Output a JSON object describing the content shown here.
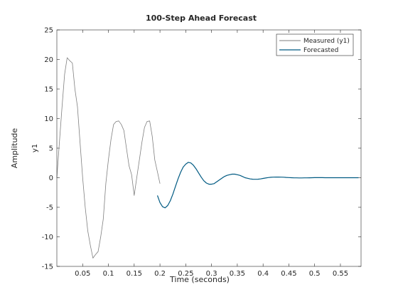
{
  "chart_data": {
    "type": "line",
    "title": "100-Step Ahead Forecast",
    "xlabel": "Time (seconds)",
    "ylabel": "Amplitude",
    "ylabel_channel": "y1",
    "xlim": [
      0.0,
      0.59
    ],
    "ylim": [
      -15,
      25
    ],
    "xticks": [
      0.05,
      0.1,
      0.15,
      0.2,
      0.25,
      0.3,
      0.35,
      0.4,
      0.45,
      0.5,
      0.55
    ],
    "xtick_labels": [
      "0.05",
      "0.1",
      "0.15",
      "0.2",
      "0.25",
      "0.3",
      "0.35",
      "0.4",
      "0.45",
      "0.5",
      "0.55"
    ],
    "yticks": [
      -15,
      -10,
      -5,
      0,
      5,
      10,
      15,
      20,
      25
    ],
    "ytick_labels": [
      "-15",
      "-10",
      "-5",
      "0",
      "5",
      "10",
      "15",
      "20",
      "25"
    ],
    "grid": false,
    "legend_position": "top-right",
    "series": [
      {
        "name": "Measured (y1)",
        "color": "#7f7f7f",
        "x": [
          0.0,
          0.005,
          0.01,
          0.015,
          0.02,
          0.025,
          0.03,
          0.035,
          0.04,
          0.045,
          0.05,
          0.055,
          0.06,
          0.065,
          0.07,
          0.075,
          0.08,
          0.085,
          0.09,
          0.095,
          0.1,
          0.105,
          0.11,
          0.115,
          0.12,
          0.125,
          0.13,
          0.135,
          0.14,
          0.145,
          0.15,
          0.155,
          0.16,
          0.165,
          0.17,
          0.175,
          0.18,
          0.185,
          0.19,
          0.195,
          0.2
        ],
        "y": [
          0.0,
          6.0,
          12.0,
          17.5,
          20.3,
          19.8,
          19.4,
          15.0,
          12.0,
          6.0,
          0.0,
          -5.0,
          -9.0,
          -11.5,
          -13.6,
          -13.0,
          -12.5,
          -10.0,
          -7.0,
          -1.0,
          3.0,
          6.5,
          9.0,
          9.5,
          9.6,
          9.0,
          8.0,
          5.0,
          2.0,
          0.5,
          -3.0,
          0.0,
          3.0,
          6.0,
          8.5,
          9.5,
          9.6,
          7.0,
          3.0,
          1.0,
          -1.0
        ]
      },
      {
        "name": "Forecasted",
        "color": "#005a82",
        "x": [
          0.195,
          0.2,
          0.205,
          0.21,
          0.215,
          0.22,
          0.225,
          0.23,
          0.235,
          0.24,
          0.245,
          0.25,
          0.255,
          0.26,
          0.265,
          0.27,
          0.275,
          0.28,
          0.285,
          0.29,
          0.295,
          0.3,
          0.305,
          0.31,
          0.315,
          0.32,
          0.325,
          0.33,
          0.335,
          0.34,
          0.345,
          0.35,
          0.355,
          0.36,
          0.365,
          0.37,
          0.375,
          0.38,
          0.385,
          0.39,
          0.395,
          0.4,
          0.405,
          0.41,
          0.415,
          0.42,
          0.425,
          0.43,
          0.435,
          0.44,
          0.445,
          0.45,
          0.455,
          0.46,
          0.465,
          0.47,
          0.475,
          0.48,
          0.485,
          0.49,
          0.495,
          0.5,
          0.505,
          0.51,
          0.515,
          0.52,
          0.525,
          0.53,
          0.535,
          0.54,
          0.545,
          0.55,
          0.555,
          0.56,
          0.565,
          0.57,
          0.575,
          0.58,
          0.585
        ],
        "y": [
          -3.0,
          -4.2,
          -4.9,
          -5.1,
          -4.7,
          -3.9,
          -2.8,
          -1.5,
          -0.2,
          0.9,
          1.8,
          2.3,
          2.6,
          2.5,
          2.1,
          1.5,
          0.8,
          0.1,
          -0.5,
          -0.9,
          -1.1,
          -1.1,
          -1.0,
          -0.7,
          -0.4,
          -0.1,
          0.2,
          0.4,
          0.5,
          0.6,
          0.6,
          0.5,
          0.4,
          0.2,
          0.0,
          -0.1,
          -0.2,
          -0.25,
          -0.27,
          -0.25,
          -0.2,
          -0.12,
          -0.05,
          0.02,
          0.07,
          0.1,
          0.11,
          0.11,
          0.1,
          0.08,
          0.05,
          0.02,
          0.0,
          -0.02,
          -0.03,
          -0.04,
          -0.04,
          -0.03,
          -0.02,
          -0.01,
          0.0,
          0.01,
          0.01,
          0.01,
          0.01,
          0.0,
          0.0,
          0.0,
          0.0,
          0.0,
          0.0,
          0.0,
          0.0,
          0.0,
          0.0,
          0.0,
          0.0,
          0.0,
          0.0
        ]
      }
    ]
  }
}
